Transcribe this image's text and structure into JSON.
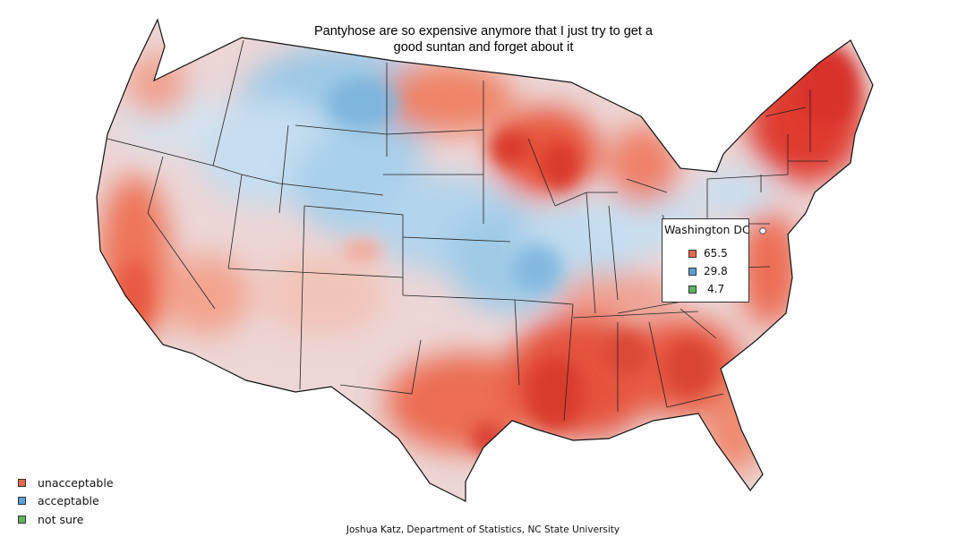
{
  "title_line1": "Pantyhose are so expensive anymore that I just try to get a",
  "title_line2": "good suntan and forget about it",
  "popup": {
    "region": "Washington DC",
    "rows": [
      {
        "label": "unacceptable",
        "value": "65.5",
        "color": "#e8684f"
      },
      {
        "label": "acceptable",
        "value": "29.8",
        "color": "#5a9fd0"
      },
      {
        "label": "not sure",
        "value": "4.7",
        "color": "#5fb35f"
      }
    ]
  },
  "legend": [
    {
      "label": "unacceptable",
      "color": "#e8684f"
    },
    {
      "label": "acceptable",
      "color": "#5a9fd0"
    },
    {
      "label": "not sure",
      "color": "#5fb35f"
    }
  ],
  "credit": "Joshua Katz, Department of Statistics, NC State University",
  "colors": {
    "strong_red": "#e0352b",
    "red": "#ec7055",
    "light_red": "#f4b0a0",
    "neutral": "#ecd6d6",
    "light_blue": "#c8dff0",
    "blue": "#8ec1e0",
    "dc_marker": "#ffffff"
  }
}
